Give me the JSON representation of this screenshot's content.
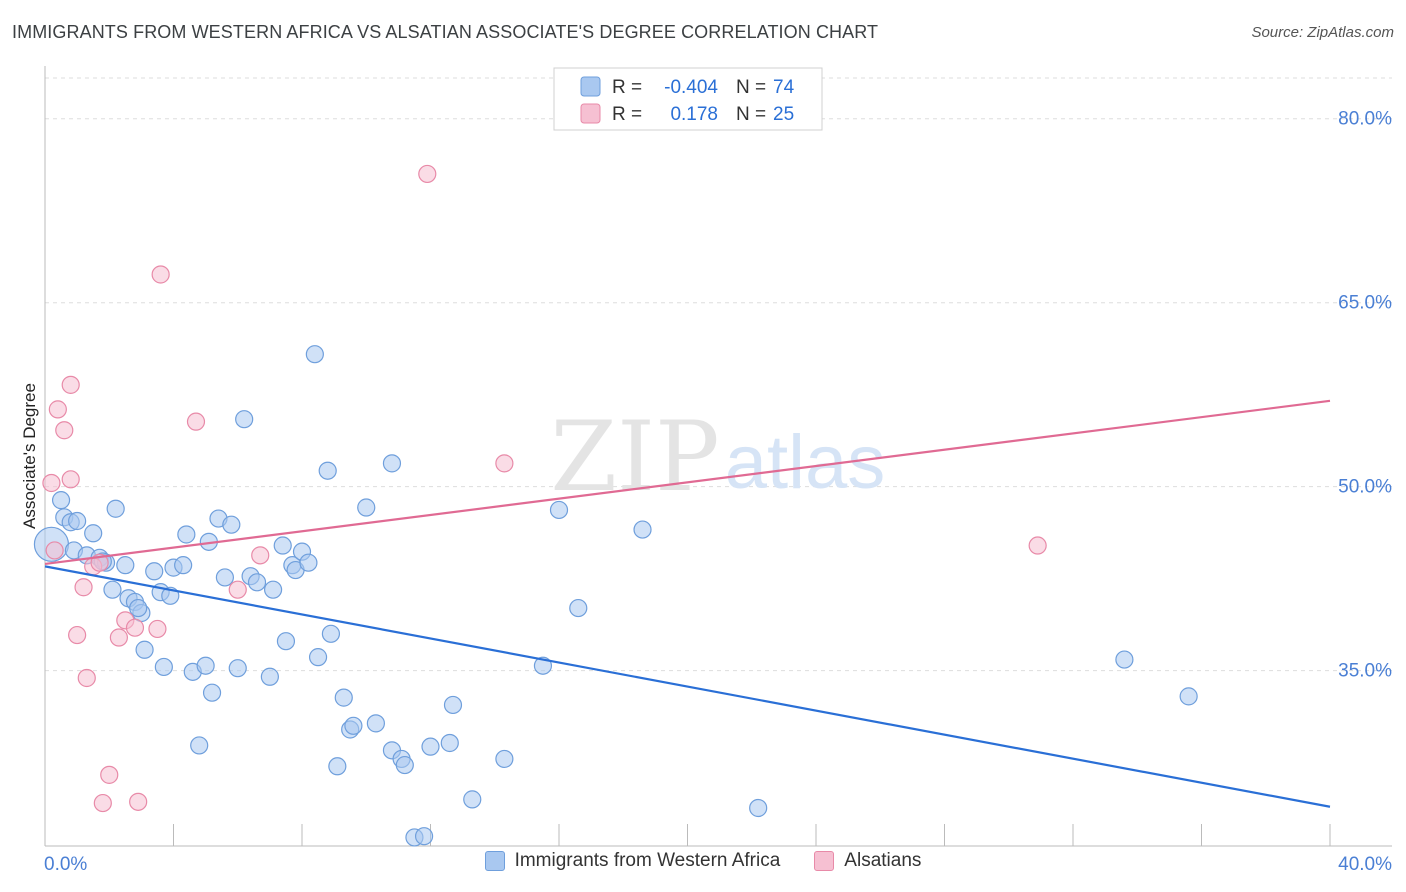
{
  "title": "IMMIGRANTS FROM WESTERN AFRICA VS ALSATIAN ASSOCIATE'S DEGREE CORRELATION CHART",
  "source": "Source: ZipAtlas.com",
  "watermark": {
    "zip": "ZIP",
    "atlas": "atlas"
  },
  "legend_box": {
    "rows": [
      {
        "r_label": "R =",
        "r_value": "-0.404",
        "n_label": "N =",
        "n_value": "74"
      },
      {
        "r_label": "R =",
        "r_value": "0.178",
        "n_label": "N =",
        "n_value": "25"
      }
    ]
  },
  "legend_bottom": {
    "series1": "Immigrants from Western Africa",
    "series2": "Alsatians"
  },
  "colors": {
    "blue_fill": "#a9c8f0",
    "blue_stroke": "#6f9fdc",
    "blue_line": "#2a6fd6",
    "pink_fill": "#f6c0d2",
    "pink_stroke": "#e88aa8",
    "pink_line": "#e06a93",
    "axis_text": "#4a7fd4",
    "grid": "#dddddd"
  },
  "chart_data": {
    "type": "scatter",
    "title": "IMMIGRANTS FROM WESTERN AFRICA VS ALSATIAN ASSOCIATE'S DEGREE CORRELATION CHART",
    "xlabel": "",
    "ylabel": "Associate's Degree",
    "xlim": [
      0,
      40
    ],
    "ylim": [
      20.7,
      84.3
    ],
    "x_tick_labels": [
      "0.0%",
      "40.0%"
    ],
    "y_ticks": [
      35,
      50,
      65,
      80
    ],
    "y_tick_labels": [
      "35.0%",
      "50.0%",
      "65.0%",
      "80.0%"
    ],
    "series": [
      {
        "name": "Immigrants from Western Africa",
        "R": -0.404,
        "N": 74,
        "trend": {
          "x": [
            0,
            40
          ],
          "y": [
            43.5,
            23.9
          ]
        },
        "points": [
          [
            0.2,
            45.3
          ],
          [
            0.5,
            48.9
          ],
          [
            0.6,
            47.5
          ],
          [
            0.8,
            47.1
          ],
          [
            1.0,
            47.2
          ],
          [
            0.9,
            44.8
          ],
          [
            1.3,
            44.4
          ],
          [
            1.5,
            46.2
          ],
          [
            1.7,
            44.2
          ],
          [
            1.9,
            43.8
          ],
          [
            2.1,
            41.6
          ],
          [
            2.2,
            48.2
          ],
          [
            2.5,
            43.6
          ],
          [
            2.6,
            40.9
          ],
          [
            2.8,
            40.6
          ],
          [
            3.0,
            39.7
          ],
          [
            3.1,
            36.7
          ],
          [
            3.4,
            43.1
          ],
          [
            3.6,
            41.4
          ],
          [
            3.7,
            35.3
          ],
          [
            3.9,
            41.1
          ],
          [
            4.0,
            43.4
          ],
          [
            4.3,
            43.6
          ],
          [
            4.4,
            46.1
          ],
          [
            4.6,
            34.9
          ],
          [
            4.8,
            28.9
          ],
          [
            5.0,
            35.4
          ],
          [
            5.1,
            45.5
          ],
          [
            5.2,
            33.2
          ],
          [
            5.4,
            47.4
          ],
          [
            5.6,
            42.6
          ],
          [
            5.8,
            46.9
          ],
          [
            6.0,
            35.2
          ],
          [
            6.2,
            55.5
          ],
          [
            6.4,
            42.7
          ],
          [
            6.6,
            42.2
          ],
          [
            7.0,
            34.5
          ],
          [
            7.1,
            41.6
          ],
          [
            7.4,
            45.2
          ],
          [
            7.5,
            37.4
          ],
          [
            7.7,
            43.6
          ],
          [
            7.8,
            43.2
          ],
          [
            8.0,
            44.7
          ],
          [
            8.2,
            43.8
          ],
          [
            8.4,
            60.8
          ],
          [
            8.5,
            36.1
          ],
          [
            8.8,
            51.3
          ],
          [
            8.9,
            38.0
          ],
          [
            9.1,
            27.2
          ],
          [
            9.3,
            32.8
          ],
          [
            9.5,
            30.2
          ],
          [
            9.6,
            30.5
          ],
          [
            10.0,
            48.3
          ],
          [
            10.3,
            30.7
          ],
          [
            10.8,
            51.9
          ],
          [
            10.8,
            28.5
          ],
          [
            11.1,
            27.8
          ],
          [
            11.2,
            27.3
          ],
          [
            11.5,
            21.4
          ],
          [
            11.8,
            21.5
          ],
          [
            12.0,
            28.8
          ],
          [
            12.6,
            29.1
          ],
          [
            12.7,
            32.2
          ],
          [
            13.3,
            24.5
          ],
          [
            14.3,
            27.8
          ],
          [
            15.5,
            35.4
          ],
          [
            16.0,
            48.1
          ],
          [
            16.6,
            40.1
          ],
          [
            18.6,
            46.5
          ],
          [
            22.2,
            23.8
          ],
          [
            33.6,
            35.9
          ],
          [
            35.6,
            32.9
          ],
          [
            2.9,
            40.1
          ],
          [
            1.8,
            43.9
          ]
        ]
      },
      {
        "name": "Alsatians",
        "R": 0.178,
        "N": 25,
        "trend": {
          "x": [
            0,
            40
          ],
          "y": [
            43.7,
            57.0
          ]
        },
        "points": [
          [
            0.2,
            50.3
          ],
          [
            0.4,
            56.3
          ],
          [
            0.6,
            54.6
          ],
          [
            0.8,
            58.3
          ],
          [
            0.8,
            50.6
          ],
          [
            1.0,
            37.9
          ],
          [
            1.2,
            41.8
          ],
          [
            1.3,
            34.4
          ],
          [
            1.5,
            43.5
          ],
          [
            1.7,
            43.8
          ],
          [
            2.0,
            26.5
          ],
          [
            1.8,
            24.2
          ],
          [
            2.3,
            37.7
          ],
          [
            2.5,
            39.1
          ],
          [
            2.8,
            38.5
          ],
          [
            2.9,
            24.3
          ],
          [
            3.5,
            38.4
          ],
          [
            3.6,
            67.3
          ],
          [
            4.7,
            55.3
          ],
          [
            6.0,
            41.6
          ],
          [
            6.7,
            44.4
          ],
          [
            11.9,
            75.5
          ],
          [
            14.3,
            51.9
          ],
          [
            30.9,
            45.2
          ],
          [
            0.3,
            44.8
          ]
        ]
      }
    ]
  }
}
